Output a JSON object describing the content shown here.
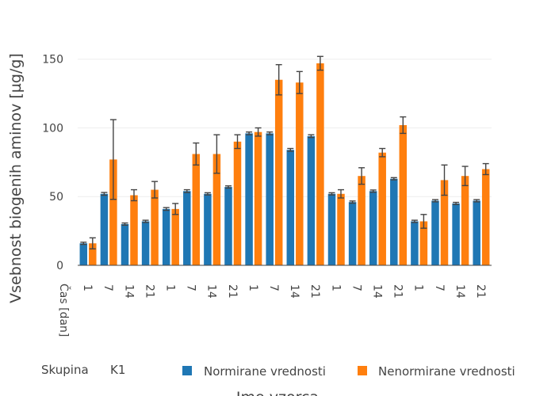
{
  "chart_data": {
    "type": "bar",
    "ylabel": "Vsebnost biogenih aminov [µg/g]",
    "xlabel": "Ime vzorca",
    "x_sub_label": "Čas [dan]",
    "group_label": "Skupina",
    "group_name": "K1",
    "categories": [
      "1",
      "7",
      "14",
      "21",
      "1",
      "7",
      "14",
      "21",
      "1",
      "7",
      "14",
      "21",
      "1",
      "7",
      "14",
      "21",
      "1",
      "7",
      "14",
      "21"
    ],
    "ylim": [
      0,
      170
    ],
    "yticks": [
      0,
      50,
      100,
      150
    ],
    "grid": true,
    "legend_position": "bottom",
    "series": [
      {
        "name": "Normirane vrednosti",
        "color": "#1f77b4",
        "values": [
          16,
          52,
          30,
          32,
          41,
          54,
          52,
          57,
          96,
          96,
          84,
          94,
          52,
          46,
          54,
          63,
          32,
          47,
          45,
          47
        ],
        "errors": [
          0.8,
          1.0,
          0.8,
          0.8,
          1.0,
          1.0,
          0.8,
          0.8,
          1.0,
          1.0,
          1.0,
          1.0,
          0.8,
          0.8,
          0.8,
          0.8,
          0.8,
          0.8,
          0.8,
          0.8
        ]
      },
      {
        "name": "Nenormirane vrednosti",
        "color": "#ff7f0e",
        "values": [
          16,
          77,
          51,
          55,
          41,
          81,
          81,
          90,
          97,
          135,
          133,
          147,
          52,
          65,
          82,
          102,
          32,
          62,
          65,
          70
        ],
        "errors": [
          4,
          29,
          4,
          6,
          4,
          8,
          14,
          5,
          3,
          11,
          8,
          5,
          3,
          6,
          3,
          6,
          5,
          11,
          7,
          4
        ]
      }
    ]
  }
}
